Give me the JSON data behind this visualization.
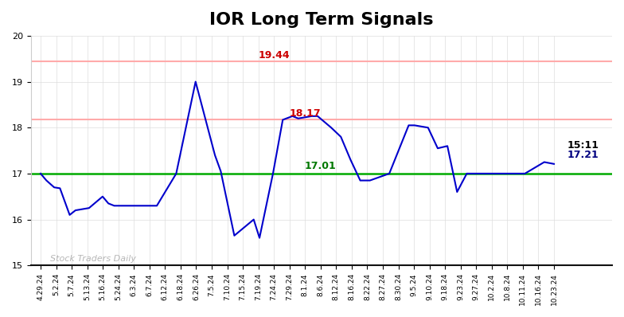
{
  "title": "IOR Long Term Signals",
  "title_fontsize": 16,
  "background_color": "#ffffff",
  "line_color": "#0000cc",
  "line_width": 1.5,
  "green_line_y": 17.0,
  "red_line_1_y": 19.44,
  "red_line_2_y": 18.17,
  "green_line_color": "#00aa00",
  "red_line_color": "#ffaaaa",
  "ylim": [
    15,
    20
  ],
  "yticks": [
    15,
    16,
    17,
    18,
    19,
    20
  ],
  "watermark": "Stock Traders Daily",
  "watermark_color": "#aaaaaa",
  "ann_19_44_color": "#cc0000",
  "ann_18_17_color": "#cc0000",
  "ann_17_01_color": "#007700",
  "ann_last_time_color": "#000000",
  "ann_last_val_color": "#000080",
  "x_labels": [
    "4.29.24",
    "5.2.24",
    "5.7.24",
    "5.13.24",
    "5.16.24",
    "5.24.24",
    "6.3.24",
    "6.7.24",
    "6.12.24",
    "6.18.24",
    "6.26.24",
    "7.5.24",
    "7.10.24",
    "7.15.24",
    "7.19.24",
    "7.24.24",
    "7.29.24",
    "8.1.24",
    "8.6.24",
    "8.12.24",
    "8.16.24",
    "8.22.24",
    "8.27.24",
    "8.30.24",
    "9.5.24",
    "9.10.24",
    "9.18.24",
    "9.23.24",
    "9.27.24",
    "10.2.24",
    "10.8.24",
    "10.11.24",
    "10.16.24",
    "10.23.24"
  ],
  "xy_data": [
    [
      0,
      17.0
    ],
    [
      0.3,
      16.85
    ],
    [
      0.7,
      16.7
    ],
    [
      1.0,
      16.68
    ],
    [
      1.5,
      16.1
    ],
    [
      1.8,
      16.2
    ],
    [
      2.5,
      16.25
    ],
    [
      3.2,
      16.5
    ],
    [
      3.5,
      16.35
    ],
    [
      3.8,
      16.3
    ],
    [
      4.0,
      16.3
    ],
    [
      4.5,
      16.3
    ],
    [
      5.0,
      16.3
    ],
    [
      5.5,
      16.3
    ],
    [
      6.0,
      16.3
    ],
    [
      7.0,
      17.0
    ],
    [
      8.0,
      19.0
    ],
    [
      9.0,
      17.4
    ],
    [
      9.3,
      17.05
    ],
    [
      10.0,
      15.65
    ],
    [
      11.0,
      16.0
    ],
    [
      11.3,
      15.6
    ],
    [
      12.0,
      17.01
    ],
    [
      12.5,
      18.17
    ],
    [
      13.0,
      18.25
    ],
    [
      13.3,
      18.2
    ],
    [
      14.0,
      18.25
    ],
    [
      14.3,
      18.25
    ],
    [
      15.0,
      18.0
    ],
    [
      15.5,
      17.8
    ],
    [
      16.0,
      17.3
    ],
    [
      16.5,
      16.85
    ],
    [
      17.0,
      16.85
    ],
    [
      18.0,
      17.0
    ],
    [
      19.0,
      18.05
    ],
    [
      19.3,
      18.05
    ],
    [
      20.0,
      18.0
    ],
    [
      20.5,
      17.55
    ],
    [
      21.0,
      17.6
    ],
    [
      21.5,
      16.6
    ],
    [
      22.0,
      17.0
    ],
    [
      23.0,
      17.0
    ],
    [
      24.0,
      17.0
    ],
    [
      25.0,
      17.0
    ],
    [
      26.0,
      17.25
    ],
    [
      26.5,
      17.21
    ]
  ],
  "xlim": [
    -0.5,
    33.5
  ],
  "n_labels": 34
}
